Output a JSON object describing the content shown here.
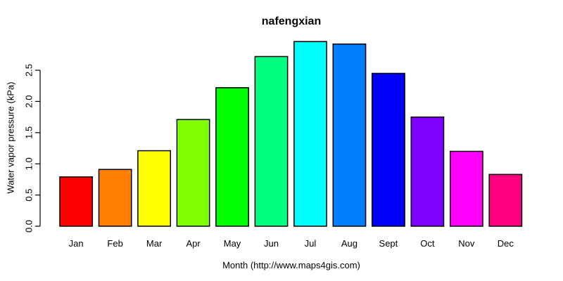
{
  "chart_data": {
    "type": "bar",
    "title": "nafengxian",
    "xlabel": "Month (http://www.maps4gis.com)",
    "ylabel": "Water vapor pressure (kPa)",
    "categories": [
      "Jan",
      "Feb",
      "Mar",
      "Apr",
      "May",
      "Jun",
      "Jul",
      "Aug",
      "Sept",
      "Oct",
      "Nov",
      "Dec"
    ],
    "values": [
      0.79,
      0.91,
      1.21,
      1.71,
      2.22,
      2.72,
      2.96,
      2.92,
      2.45,
      1.75,
      1.2,
      0.83
    ],
    "bar_colors": [
      "#FF0000",
      "#FF8000",
      "#FFFF00",
      "#80FF00",
      "#00FF00",
      "#00FF80",
      "#00FFFF",
      "#0080FF",
      "#0000FF",
      "#8000FF",
      "#FF00FF",
      "#FF0080"
    ],
    "bar_border_color": "#000000",
    "axis_color": "#000000",
    "background_color": "#FFFFFF",
    "yticks": [
      "0.0",
      "0.5",
      "1.0",
      "1.5",
      "2.0",
      "2.5"
    ],
    "ylim": [
      0,
      2.5
    ],
    "grid": false,
    "legend": null
  }
}
